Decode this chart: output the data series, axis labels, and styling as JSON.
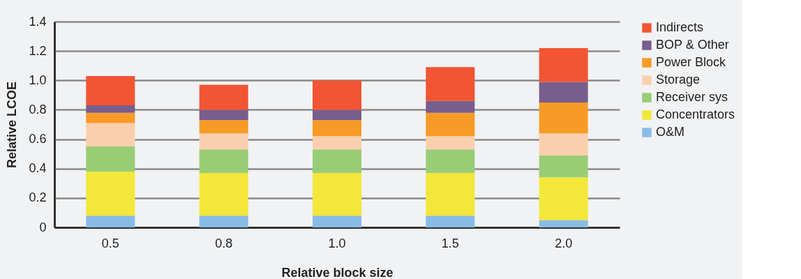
{
  "chart_data": {
    "type": "bar",
    "stacked": true,
    "xlabel": "Relative block size",
    "ylabel": "Relative LCOE",
    "categories": [
      "0.5",
      "0.8",
      "1.0",
      "1.5",
      "2.0"
    ],
    "series": [
      {
        "name": "O&M",
        "color": "#88bce6",
        "values": [
          0.08,
          0.08,
          0.08,
          0.08,
          0.05
        ]
      },
      {
        "name": "Concentrators",
        "color": "#f3e73a",
        "values": [
          0.3,
          0.29,
          0.29,
          0.29,
          0.29
        ]
      },
      {
        "name": "Receiver sys",
        "color": "#98cd76",
        "values": [
          0.17,
          0.16,
          0.16,
          0.16,
          0.15
        ]
      },
      {
        "name": "Storage",
        "color": "#fbcfae",
        "values": [
          0.16,
          0.11,
          0.09,
          0.09,
          0.15
        ]
      },
      {
        "name": "Power Block",
        "color": "#f89a26",
        "values": [
          0.07,
          0.09,
          0.11,
          0.16,
          0.21
        ]
      },
      {
        "name": "BOP & Other",
        "color": "#775e8c",
        "values": [
          0.05,
          0.07,
          0.07,
          0.08,
          0.14
        ]
      },
      {
        "name": "Indirects",
        "color": "#f15533",
        "values": [
          0.2,
          0.17,
          0.2,
          0.23,
          0.23
        ]
      }
    ],
    "ylim": [
      0,
      1.4
    ],
    "yticks": [
      0,
      0.2,
      0.4,
      0.6,
      0.8,
      {
        "value": 1.0,
        "label": "1.0"
      },
      1.2,
      1.4
    ],
    "grid": "y",
    "legend": "right"
  }
}
